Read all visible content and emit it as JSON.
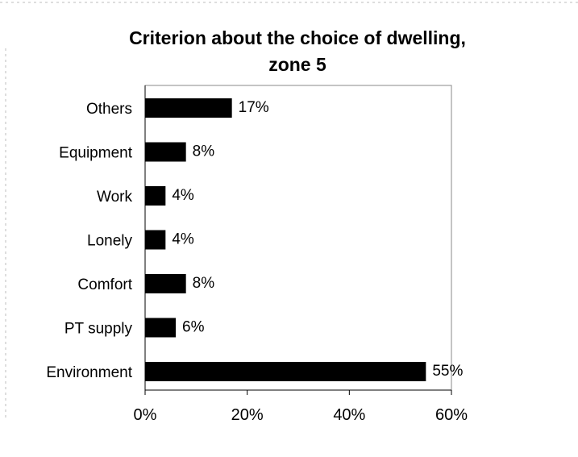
{
  "chart_data": {
    "type": "bar",
    "orientation": "horizontal",
    "title": [
      "Criterion about the choice of dwelling,",
      "zone 5"
    ],
    "categories": [
      "Others",
      "Equipment",
      "Work",
      "Lonely",
      "Comfort",
      "PT supply",
      "Environment"
    ],
    "values": [
      17,
      8,
      4,
      4,
      8,
      6,
      55
    ],
    "data_labels": [
      "17%",
      "8%",
      "4%",
      "4%",
      "8%",
      "6%",
      "55%"
    ],
    "xlim": [
      0,
      60
    ],
    "x_ticks": [
      0,
      20,
      40,
      60
    ],
    "x_tick_labels": [
      "0%",
      "20%",
      "40%",
      "60%"
    ],
    "grid": false,
    "legend": "none",
    "bar_color": "#000000"
  }
}
